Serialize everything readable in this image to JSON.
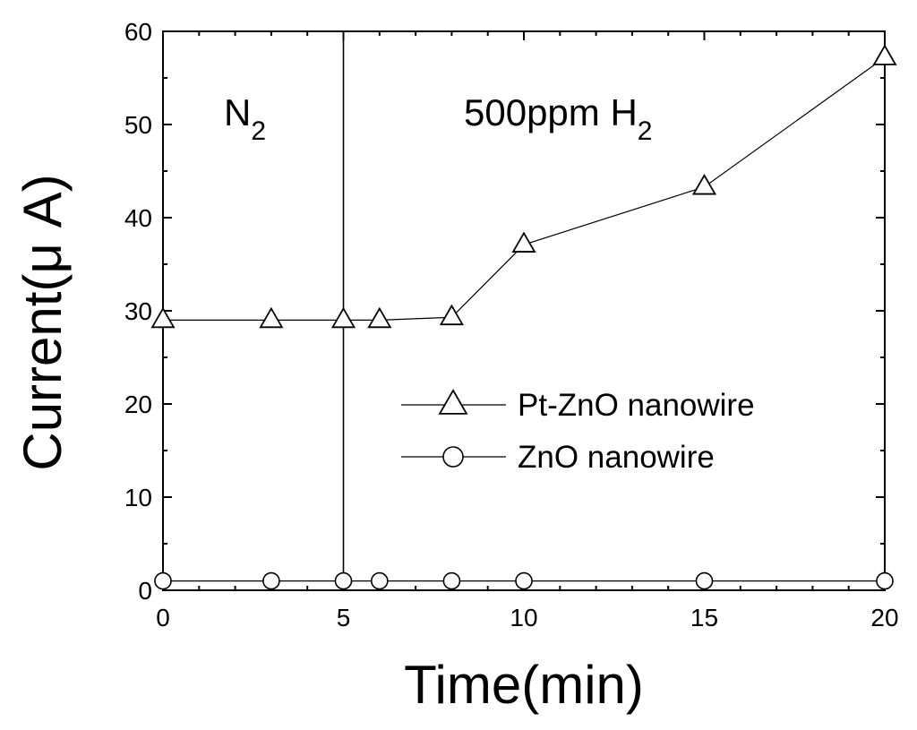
{
  "chart_data": {
    "type": "line",
    "xlabel": "Time(min)",
    "ylabel": "Current(μ  A)",
    "xlim": [
      0,
      20
    ],
    "ylim": [
      0,
      60
    ],
    "xticks": [
      0,
      5,
      10,
      15,
      20
    ],
    "yticks": [
      0,
      10,
      20,
      30,
      40,
      50,
      60
    ],
    "grid": false,
    "legend_position": "center-right",
    "series": [
      {
        "name": "Pt-ZnO nanowire",
        "marker": "triangle",
        "x": [
          0,
          3,
          5,
          6,
          8,
          10,
          15,
          20
        ],
        "y": [
          29.0,
          29.0,
          29.0,
          29.0,
          29.3,
          37.1,
          43.3,
          57.2
        ]
      },
      {
        "name": "ZnO nanowire",
        "marker": "circle",
        "x": [
          0,
          3,
          5,
          6,
          8,
          10,
          15,
          20
        ],
        "y": [
          1.0,
          1.0,
          1.0,
          1.0,
          1.0,
          1.0,
          1.0,
          1.0
        ]
      }
    ],
    "vline_x": 5,
    "annotations": {
      "region_left": {
        "base": "N",
        "sub": "2"
      },
      "region_right": {
        "base": "500ppm H",
        "sub": "2"
      }
    }
  }
}
